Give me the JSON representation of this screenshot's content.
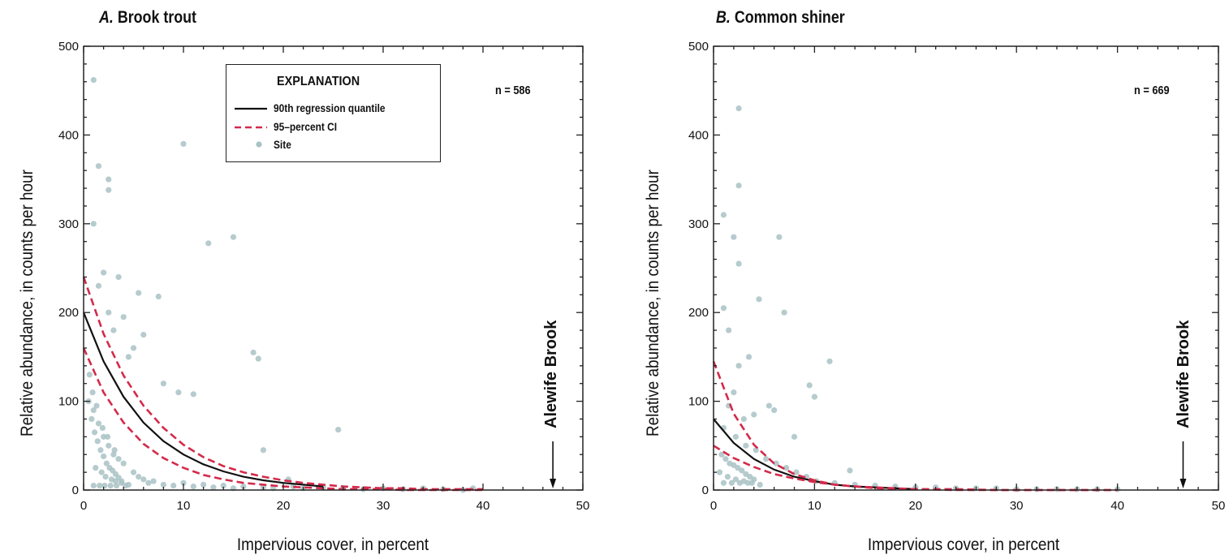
{
  "chart_data": [
    {
      "type": "scatter",
      "panel_letter": "A.",
      "title": "Brook trout",
      "xlabel": "Impervious cover, in percent",
      "ylabel": "Relative abundance, in counts per hour",
      "xlim": [
        0,
        50
      ],
      "ylim": [
        0,
        500
      ],
      "xticks": [
        0,
        10,
        20,
        30,
        40,
        50
      ],
      "yticks": [
        0,
        100,
        200,
        300,
        400,
        500
      ],
      "n_label": "n = 586",
      "annotation": {
        "text": "Alewife Brook",
        "x": 47,
        "arrow_to_y": 0
      },
      "legend": {
        "title": "EXPLANATION",
        "placement": "top-center",
        "entries": [
          {
            "label": "90th regression quantile",
            "style": "solid-black"
          },
          {
            "label": "95–percent CI",
            "style": "dashed-red"
          },
          {
            "label": "Site",
            "style": "gray-point"
          }
        ]
      },
      "series": [
        {
          "name": "90th regression quantile",
          "color": "#111111",
          "dashed": false,
          "x": [
            0,
            2,
            4,
            6,
            8,
            10,
            12,
            14,
            16,
            18,
            20,
            22,
            24
          ],
          "y": [
            200,
            145,
            105,
            76,
            55,
            40,
            29,
            21,
            15,
            11,
            8,
            6,
            4
          ]
        },
        {
          "name": "95–percent CI",
          "color": "#d42a4b",
          "dashed": true,
          "x": [
            0,
            2,
            4,
            6,
            8,
            10,
            12,
            14,
            16,
            18,
            20,
            22,
            24,
            26,
            28,
            30,
            32,
            34,
            36,
            38,
            40
          ],
          "y": [
            240,
            176,
            129,
            95,
            70,
            51,
            37,
            27,
            20,
            15,
            11,
            8,
            6,
            4,
            3,
            2,
            2,
            1,
            1,
            1,
            1
          ]
        },
        {
          "name": "95–percent CI",
          "color": "#d42a4b",
          "dashed": true,
          "x": [
            0,
            2,
            4,
            6,
            8,
            10,
            12,
            14,
            16,
            18,
            20,
            22,
            24,
            26,
            28,
            30,
            32,
            34,
            36,
            38,
            40
          ],
          "y": [
            160,
            110,
            76,
            52,
            36,
            25,
            17,
            12,
            8,
            6,
            4,
            3,
            2,
            1,
            1,
            1,
            0,
            0,
            0,
            0,
            0
          ]
        }
      ],
      "points": {
        "name": "Site",
        "color": "#a9c2c4",
        "x": [
          1.0,
          1.5,
          2.5,
          2.5,
          1.0,
          10.0,
          12.5,
          15.0,
          5.5,
          7.5,
          2.0,
          3.5,
          4.0,
          6.0,
          1.5,
          2.5,
          3.0,
          5.0,
          4.5,
          8.0,
          9.5,
          11.0,
          17.0,
          17.5,
          25.5,
          18.0,
          20.5,
          1.0,
          1.5,
          2.0,
          2.5,
          3.0,
          3.5,
          4.0,
          1.2,
          1.8,
          2.2,
          2.8,
          3.2,
          3.8,
          4.5,
          5.0,
          5.5,
          6.0,
          6.5,
          7.0,
          8.0,
          9.0,
          10.0,
          11.0,
          12.0,
          13.0,
          14.0,
          15.0,
          16.0,
          18.0,
          19.0,
          21.0,
          22.0,
          24.0,
          26.0,
          28.0,
          30.0,
          32.0,
          34.0,
          36.0,
          38.0,
          39.0,
          0.5,
          0.8,
          1.1,
          1.4,
          1.7,
          2.0,
          2.3,
          2.6,
          2.9,
          3.2,
          3.5,
          3.8,
          1.0,
          1.6,
          2.1,
          2.7,
          3.3,
          4.2,
          0.6,
          0.9,
          1.3,
          1.9,
          2.4,
          3.1
        ],
        "y": [
          462,
          365,
          350,
          338,
          300,
          390,
          278,
          285,
          222,
          218,
          245,
          240,
          195,
          175,
          230,
          200,
          180,
          160,
          150,
          120,
          110,
          108,
          155,
          148,
          68,
          45,
          12,
          90,
          75,
          60,
          50,
          40,
          35,
          30,
          25,
          20,
          15,
          12,
          10,
          8,
          6,
          20,
          15,
          12,
          8,
          10,
          6,
          5,
          8,
          4,
          6,
          3,
          5,
          2,
          4,
          3,
          2,
          4,
          2,
          3,
          2,
          1,
          2,
          1,
          2,
          1,
          0,
          2,
          100,
          80,
          65,
          55,
          45,
          38,
          30,
          25,
          22,
          18,
          14,
          10,
          5,
          5,
          5,
          5,
          5,
          5,
          130,
          110,
          95,
          70,
          60,
          45
        ]
      }
    },
    {
      "type": "scatter",
      "panel_letter": "B.",
      "title": "Common shiner",
      "xlabel": "Impervious cover, in percent",
      "ylabel": "Relative abundance, in counts per hour",
      "xlim": [
        0,
        50
      ],
      "ylim": [
        0,
        500
      ],
      "xticks": [
        0,
        10,
        20,
        30,
        40,
        50
      ],
      "yticks": [
        0,
        100,
        200,
        300,
        400,
        500
      ],
      "n_label": "n = 669",
      "annotation": {
        "text": "Alewife Brook",
        "x": 46.5,
        "arrow_to_y": 0
      },
      "series": [
        {
          "name": "90th regression quantile",
          "color": "#111111",
          "dashed": false,
          "x": [
            0,
            2,
            4,
            6,
            8,
            10,
            12,
            14,
            16,
            18,
            20
          ],
          "y": [
            80,
            53,
            35,
            23,
            15,
            10,
            6,
            4,
            3,
            2,
            1
          ]
        },
        {
          "name": "95–percent CI",
          "color": "#d42a4b",
          "dashed": true,
          "x": [
            0,
            2,
            4,
            6,
            8,
            10,
            12,
            14,
            16,
            18,
            20,
            24,
            28,
            32,
            36,
            40
          ],
          "y": [
            145,
            86,
            51,
            30,
            18,
            11,
            6,
            4,
            2,
            1,
            1,
            0,
            0,
            0,
            0,
            0
          ]
        },
        {
          "name": "95–percent CI",
          "color": "#d42a4b",
          "dashed": true,
          "x": [
            0,
            2,
            4,
            6,
            8,
            10,
            12,
            14,
            16,
            18,
            20,
            24,
            28,
            32,
            36,
            40
          ],
          "y": [
            50,
            36,
            26,
            18,
            13,
            9,
            6,
            4,
            3,
            2,
            1,
            1,
            0,
            0,
            0,
            0
          ]
        }
      ],
      "points": {
        "name": "Site",
        "color": "#a9c2c4",
        "x": [
          2.5,
          2.5,
          1.0,
          2.0,
          2.5,
          6.5,
          4.5,
          7.0,
          1.0,
          1.5,
          3.5,
          2.5,
          9.5,
          10.0,
          11.5,
          5.5,
          6.0,
          4.0,
          3.0,
          2.0,
          1.5,
          1.0,
          2.2,
          3.2,
          4.2,
          5.2,
          6.2,
          7.2,
          8.2,
          9.2,
          10.2,
          12.0,
          14.0,
          16.0,
          18.0,
          20.0,
          22.0,
          24.0,
          26.0,
          28.0,
          30.0,
          32.0,
          34.0,
          36.0,
          38.0,
          40.0,
          0.8,
          1.2,
          1.6,
          2.0,
          2.4,
          2.8,
          3.2,
          3.6,
          4.0,
          1.0,
          1.8,
          2.6,
          3.4,
          0.6,
          1.4,
          2.2,
          3.0,
          3.8,
          4.6,
          13.5,
          8.0
        ],
        "y": [
          430,
          343,
          310,
          285,
          255,
          285,
          215,
          200,
          205,
          180,
          150,
          140,
          118,
          105,
          145,
          95,
          90,
          85,
          80,
          110,
          95,
          70,
          60,
          50,
          45,
          35,
          30,
          25,
          20,
          15,
          10,
          8,
          6,
          5,
          4,
          3,
          3,
          2,
          2,
          2,
          1,
          1,
          1,
          1,
          1,
          1,
          40,
          35,
          30,
          28,
          25,
          22,
          18,
          15,
          12,
          8,
          8,
          8,
          8,
          20,
          15,
          12,
          10,
          8,
          6,
          22,
          60
        ]
      }
    }
  ]
}
